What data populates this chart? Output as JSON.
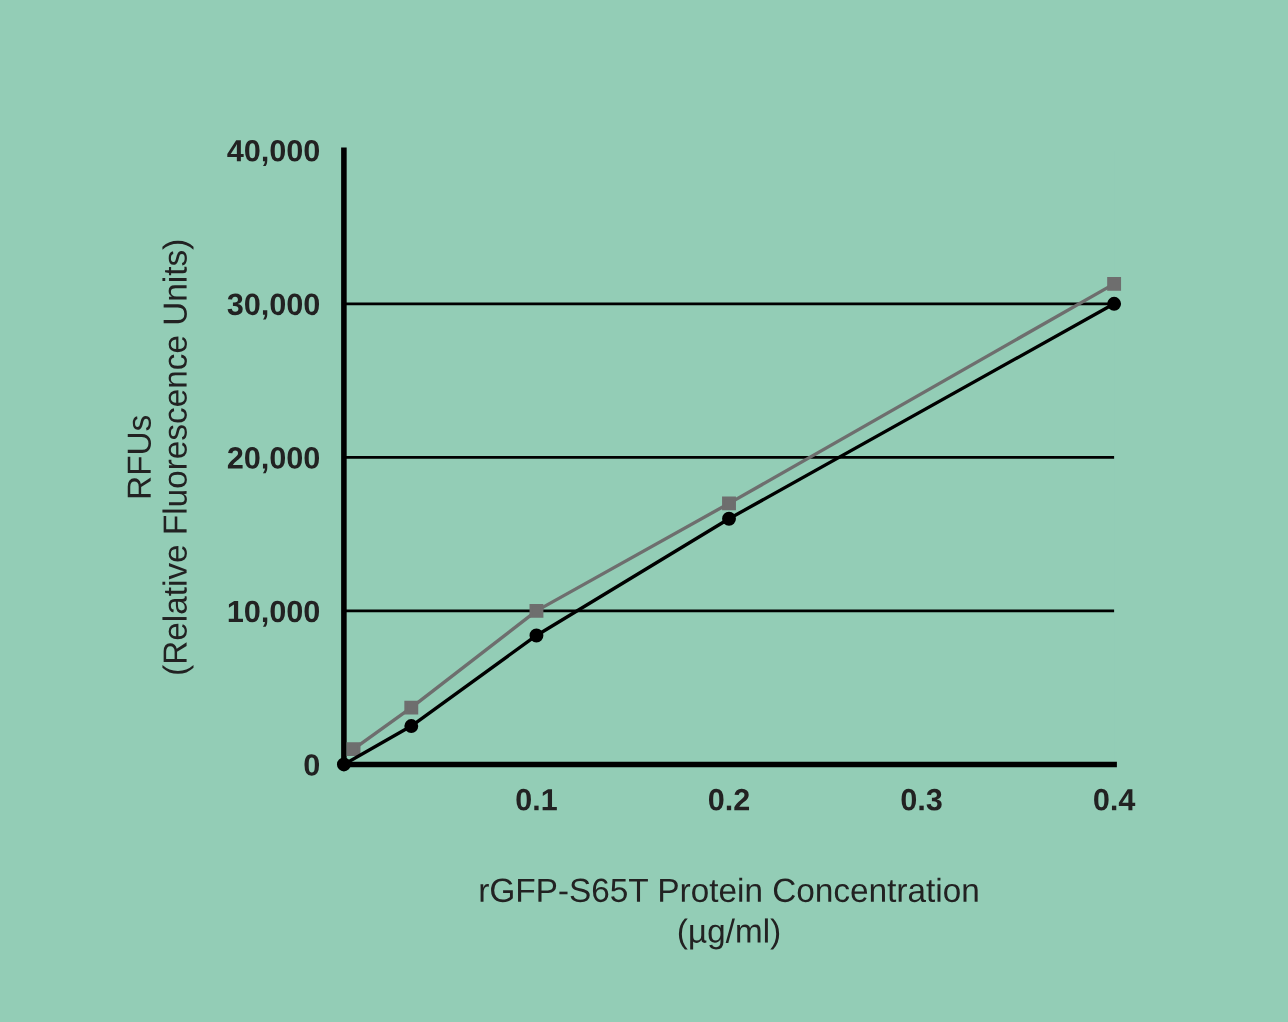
{
  "chart_data": {
    "type": "line",
    "xlabel": "rGFP-S65T Protein Concentration\n(µg/ml)",
    "ylabel": "RFUs\n(Relative Fluorescence Units)",
    "series": [
      {
        "color": "#6e6e6e",
        "marker": "square",
        "x": [
          0.005,
          0.035,
          0.1,
          0.2,
          0.4
        ],
        "values": [
          1000,
          3700,
          10000,
          17000,
          31300
        ]
      },
      {
        "color": "#000000",
        "marker": "circle",
        "x": [
          0,
          0.035,
          0.1,
          0.2,
          0.4
        ],
        "values": [
          0,
          2500,
          8400,
          16000,
          30000
        ]
      }
    ],
    "xlim": [
      0,
      0.4
    ],
    "xticks": [
      0.1,
      0.2,
      0.3,
      0.4
    ],
    "ylim": [
      0,
      40000
    ],
    "yticks": [
      {
        "value": 0,
        "label": "0"
      },
      {
        "value": 10000,
        "label": "10,000"
      },
      {
        "value": 20000,
        "label": "20,000"
      },
      {
        "value": 30000,
        "label": "30,000"
      },
      {
        "value": 40000,
        "label": "40,000"
      }
    ],
    "ref_lines": [
      {
        "axis": "y",
        "value": 10000,
        "color": "#000000"
      },
      {
        "axis": "y",
        "value": 20000,
        "color": "#000000"
      },
      {
        "axis": "y",
        "value": 30000,
        "color": "#000000"
      }
    ],
    "grid": false,
    "legend": false
  }
}
